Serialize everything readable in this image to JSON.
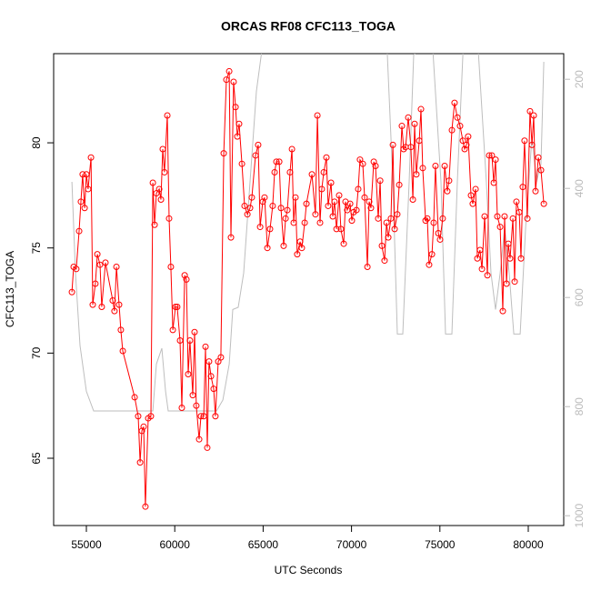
{
  "chart_data": {
    "type": "line",
    "title": "ORCAS RF08 CFC113_TOGA",
    "x_label": "UTC Seconds",
    "y_label": "CFC113_TOGA",
    "xlim": [
      53148,
      82006
    ],
    "xticks": [
      55000,
      60000,
      65000,
      70000,
      75000,
      80000
    ],
    "ylim": [
      61.8,
      84.24
    ],
    "yticks": [
      65,
      70,
      75,
      80
    ],
    "y2lim": [
      1018,
      153
    ],
    "y2ticks": [
      200,
      400,
      600,
      800,
      1000
    ],
    "series": [
      {
        "color": "#ff0000",
        "markers": true,
        "x": [
          54180,
          54280,
          54430,
          54590,
          54690,
          54790,
          54900,
          55000,
          55100,
          55260,
          55360,
          55510,
          55620,
          55770,
          55870,
          56080,
          56490,
          56590,
          56700,
          56850,
          56950,
          57060,
          57730,
          57930,
          58040,
          58140,
          58240,
          58340,
          58500,
          58650,
          58760,
          58860,
          58960,
          59120,
          59220,
          59320,
          59420,
          59580,
          59680,
          59780,
          59890,
          60040,
          60140,
          60300,
          60400,
          60560,
          60660,
          60760,
          60860,
          61020,
          61120,
          61220,
          61380,
          61480,
          61640,
          61740,
          61840,
          61940,
          62050,
          62200,
          62300,
          62460,
          62610,
          62770,
          62920,
          63080,
          63180,
          63330,
          63440,
          63540,
          63640,
          63800,
          63950,
          64110,
          64260,
          64360,
          64570,
          64720,
          64830,
          64980,
          65080,
          65240,
          65390,
          65540,
          65650,
          65750,
          65910,
          66010,
          66160,
          66270,
          66370,
          66520,
          66630,
          66730,
          66830,
          66930,
          67090,
          67190,
          67350,
          67450,
          67760,
          67960,
          68070,
          68220,
          68320,
          68430,
          68580,
          68680,
          68840,
          68940,
          69040,
          69150,
          69300,
          69400,
          69560,
          69660,
          69760,
          69920,
          70020,
          70120,
          70280,
          70380,
          70480,
          70640,
          70740,
          70900,
          71000,
          71100,
          71260,
          71360,
          71510,
          71620,
          71720,
          71870,
          71980,
          72080,
          72230,
          72340,
          72440,
          72590,
          72700,
          72850,
          72950,
          73060,
          73210,
          73360,
          73470,
          73570,
          73670,
          73830,
          73930,
          74030,
          74190,
          74290,
          74390,
          74550,
          74650,
          74750,
          74910,
          75010,
          75160,
          75270,
          75420,
          75520,
          75680,
          75830,
          75990,
          76140,
          76300,
          76400,
          76500,
          76600,
          76760,
          76860,
          77020,
          77120,
          77270,
          77380,
          77530,
          77690,
          77790,
          77940,
          78050,
          78150,
          78250,
          78410,
          78560,
          78660,
          78770,
          78870,
          78970,
          79130,
          79230,
          79330,
          79490,
          79590,
          79690,
          79790,
          79950,
          80100,
          80210,
          80310,
          80410,
          80570,
          80720,
          80880
        ],
        "values": [
          72.9,
          74.1,
          74.0,
          75.8,
          77.2,
          78.5,
          76.9,
          78.5,
          77.8,
          79.3,
          72.3,
          73.3,
          74.7,
          74.2,
          72.2,
          74.3,
          72.5,
          72.0,
          74.1,
          72.3,
          71.1,
          70.1,
          67.9,
          67.0,
          64.8,
          66.3,
          66.5,
          62.7,
          66.9,
          67.0,
          78.1,
          76.1,
          77.6,
          77.8,
          77.3,
          79.7,
          78.6,
          81.3,
          76.4,
          74.1,
          71.1,
          72.2,
          72.2,
          70.6,
          67.4,
          73.7,
          73.5,
          69.0,
          70.6,
          68.0,
          71.0,
          67.5,
          65.9,
          67.0,
          67.0,
          70.3,
          65.5,
          69.6,
          68.9,
          68.3,
          67.0,
          69.6,
          69.8,
          79.5,
          83.0,
          83.4,
          75.5,
          82.9,
          81.7,
          80.3,
          80.9,
          79.0,
          77.0,
          76.6,
          76.9,
          77.4,
          79.4,
          79.9,
          76.0,
          77.2,
          77.4,
          75.0,
          75.9,
          77.0,
          78.6,
          79.1,
          79.1,
          76.9,
          75.1,
          76.4,
          76.8,
          78.6,
          79.7,
          76.2,
          77.4,
          74.7,
          75.3,
          75.0,
          76.2,
          77.1,
          78.5,
          76.6,
          81.3,
          76.2,
          77.8,
          78.6,
          79.3,
          77.0,
          78.1,
          76.5,
          77.2,
          75.9,
          77.5,
          75.9,
          75.2,
          77.2,
          76.8,
          77.1,
          76.3,
          76.7,
          76.8,
          77.8,
          79.2,
          79.0,
          77.4,
          74.1,
          77.2,
          76.9,
          79.1,
          78.9,
          76.4,
          78.2,
          75.1,
          74.4,
          76.2,
          75.5,
          76.4,
          79.9,
          75.9,
          76.6,
          78.0,
          80.8,
          79.7,
          79.8,
          81.2,
          79.8,
          77.3,
          80.9,
          78.5,
          80.1,
          81.6,
          78.8,
          76.3,
          76.4,
          74.2,
          74.7,
          76.2,
          78.9,
          75.7,
          75.4,
          76.4,
          78.9,
          77.7,
          78.2,
          80.6,
          81.9,
          81.2,
          80.8,
          80.1,
          79.7,
          79.9,
          80.3,
          77.5,
          77.1,
          77.8,
          74.5,
          74.9,
          74.0,
          76.5,
          73.7,
          79.4,
          79.4,
          78.1,
          79.2,
          76.5,
          76.0,
          72.0,
          76.5,
          73.3,
          75.2,
          74.5,
          76.4,
          73.4,
          77.2,
          76.7,
          74.5,
          77.9,
          80.1,
          76.4,
          81.5,
          79.9,
          81.3,
          77.7,
          79.3,
          78.7,
          77.1
        ]
      },
      {
        "color": "#bebebe",
        "axis": "y2",
        "markers": false,
        "x": [
          54180,
          54380,
          54640,
          55000,
          55410,
          56800,
          58340,
          58760,
          58960,
          59270,
          59480,
          59630,
          61170,
          62360,
          62720,
          63080,
          63280,
          63590,
          63900,
          64260,
          64620,
          64930,
          65540,
          67860,
          68630,
          70690,
          71980,
          72340,
          72590,
          72900,
          73260,
          73520,
          74550,
          75060,
          75320,
          75680,
          75990,
          76350,
          77120,
          77630,
          77890,
          78150,
          78410,
          78660,
          78920,
          79180,
          79540,
          79850,
          80210,
          80470,
          80720,
          80880
        ],
        "values": [
          388,
          555,
          688,
          772,
          808,
          808,
          808,
          808,
          722,
          693,
          772,
          808,
          808,
          808,
          788,
          722,
          622,
          618,
          555,
          388,
          222,
          147,
          120,
          120,
          120,
          120,
          120,
          388,
          667,
          667,
          388,
          155,
          120,
          388,
          667,
          667,
          388,
          120,
          120,
          388,
          555,
          622,
          555,
          472,
          555,
          667,
          667,
          472,
          305,
          388,
          355,
          168
        ]
      }
    ]
  }
}
